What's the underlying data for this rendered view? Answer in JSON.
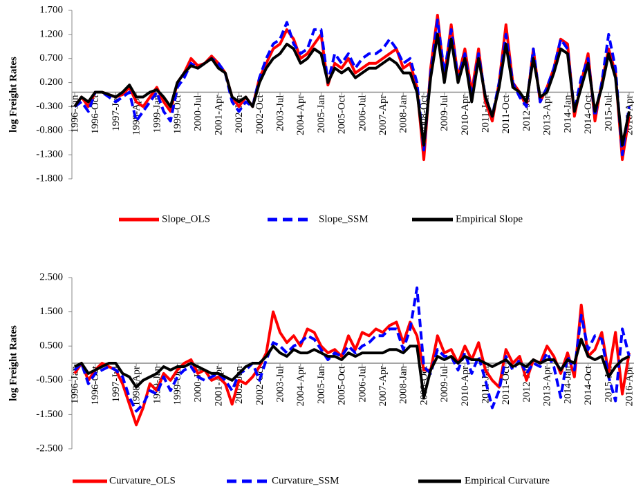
{
  "chart_data": [
    {
      "type": "line",
      "y_label": "log Freight Rates",
      "categories": [
        "1996-Jan",
        null,
        null,
        "1996-Oct",
        null,
        null,
        "1997-Jul",
        null,
        null,
        "1998-Apr",
        null,
        null,
        "1999-Jan",
        null,
        null,
        "1999-Oct",
        null,
        null,
        "2000-Jul",
        null,
        null,
        "2001-Apr",
        null,
        null,
        "2002-Jan",
        null,
        null,
        "2002-Oct",
        null,
        null,
        "2003-Jul",
        null,
        null,
        "2004-Apr",
        null,
        null,
        "2005-Jan",
        null,
        null,
        "2005-Oct",
        null,
        null,
        "2006-Jul",
        null,
        null,
        "2007-Apr",
        null,
        null,
        "2008-Jan",
        null,
        null,
        "2008-Oct",
        null,
        null,
        "2009-Jul",
        null,
        null,
        "2010-Apr",
        null,
        null,
        "2011-Jan",
        null,
        null,
        "2011-Oct",
        null,
        null,
        "2012-Jul",
        null,
        null,
        "2013-Apr",
        null,
        null,
        "2014-Jan",
        null,
        null,
        "2014-Oct",
        null,
        null,
        "2015-Jul",
        null,
        null,
        "2016-Apr"
      ],
      "ylim": [
        -1.8,
        1.7
      ],
      "yticks": [
        {
          "value": -1.8,
          "label": "-1.800"
        },
        {
          "value": -1.3,
          "label": "-1.300"
        },
        {
          "value": -0.8,
          "label": "-0.800"
        },
        {
          "value": -0.3,
          "label": "-0.300"
        },
        {
          "value": 0.2,
          "label": "0.200"
        },
        {
          "value": 0.7,
          "label": "0.700"
        },
        {
          "value": 1.2,
          "label": "1.200"
        },
        {
          "value": 1.7,
          "label": "1.700"
        }
      ],
      "series": [
        {
          "name": "Slope_OLS",
          "color": "#ff0000",
          "dashed": false,
          "values": [
            -0.3,
            -0.1,
            -0.3,
            0.0,
            0.0,
            -0.05,
            -0.1,
            -0.05,
            0.1,
            -0.2,
            -0.3,
            -0.1,
            0.1,
            -0.2,
            -0.4,
            0.2,
            0.4,
            0.7,
            0.55,
            0.6,
            0.75,
            0.6,
            0.4,
            -0.1,
            -0.3,
            -0.1,
            -0.3,
            0.3,
            0.6,
            0.9,
            1.0,
            1.3,
            1.1,
            0.7,
            0.8,
            1.0,
            1.2,
            0.15,
            0.6,
            0.5,
            0.7,
            0.4,
            0.5,
            0.6,
            0.6,
            0.7,
            0.8,
            0.9,
            0.5,
            0.6,
            0.1,
            -1.4,
            0.5,
            1.6,
            0.3,
            1.4,
            0.3,
            0.9,
            0.0,
            0.9,
            -0.2,
            -0.6,
            0.2,
            1.4,
            0.2,
            0.0,
            -0.3,
            0.9,
            -0.2,
            0.1,
            0.5,
            1.1,
            1.0,
            -0.5,
            0.2,
            0.8,
            -0.6,
            0.2,
            0.9,
            0.4,
            -1.4,
            -0.5
          ]
        },
        {
          "name": "Slope_SSM",
          "color": "#0000ff",
          "dashed": true,
          "values": [
            -0.3,
            -0.2,
            -0.4,
            0.0,
            0.0,
            -0.1,
            -0.2,
            -0.1,
            0.0,
            -0.6,
            -0.4,
            -0.2,
            0.0,
            -0.4,
            -0.6,
            0.1,
            0.3,
            0.6,
            0.5,
            0.6,
            0.7,
            0.6,
            0.4,
            -0.2,
            -0.4,
            -0.2,
            -0.3,
            0.3,
            0.7,
            1.0,
            1.1,
            1.45,
            1.0,
            0.8,
            0.9,
            1.3,
            1.3,
            0.2,
            0.8,
            0.6,
            0.8,
            0.5,
            0.7,
            0.8,
            0.8,
            0.9,
            1.1,
            0.9,
            0.6,
            0.7,
            0.2,
            -1.2,
            0.4,
            1.5,
            0.4,
            1.3,
            0.3,
            0.8,
            -0.1,
            0.8,
            -0.1,
            -0.5,
            0.2,
            1.2,
            0.2,
            -0.1,
            -0.3,
            0.9,
            -0.2,
            0.1,
            0.5,
            1.1,
            0.9,
            -0.4,
            0.3,
            0.7,
            -0.5,
            0.2,
            1.2,
            0.5,
            -1.3,
            -0.3
          ]
        },
        {
          "name": "Empirical Slope",
          "color": "#000000",
          "dashed": false,
          "values": [
            -0.3,
            -0.1,
            -0.2,
            0.0,
            0.0,
            -0.05,
            -0.1,
            0.0,
            0.15,
            -0.1,
            -0.1,
            0.0,
            0.05,
            -0.1,
            -0.3,
            0.2,
            0.4,
            0.55,
            0.5,
            0.6,
            0.7,
            0.5,
            0.4,
            -0.1,
            -0.2,
            -0.1,
            -0.3,
            0.2,
            0.5,
            0.7,
            0.8,
            1.0,
            0.9,
            0.6,
            0.7,
            0.9,
            0.8,
            0.2,
            0.5,
            0.4,
            0.5,
            0.3,
            0.4,
            0.5,
            0.5,
            0.6,
            0.7,
            0.6,
            0.4,
            0.4,
            0.0,
            -1.1,
            0.3,
            1.2,
            0.2,
            1.1,
            0.2,
            0.7,
            -0.2,
            0.7,
            -0.1,
            -0.5,
            0.1,
            1.0,
            0.1,
            0.0,
            -0.2,
            0.7,
            -0.1,
            0.0,
            0.4,
            0.9,
            0.8,
            -0.4,
            0.1,
            0.6,
            -0.4,
            0.1,
            0.8,
            0.3,
            -1.1,
            -0.4
          ]
        }
      ]
    },
    {
      "type": "line",
      "y_label": "log Freight Rates",
      "categories": [
        "1996-Jan",
        null,
        null,
        "1996-Oct",
        null,
        null,
        "1997-Jul",
        null,
        null,
        "1998-Apr",
        null,
        null,
        "1999-Jan",
        null,
        null,
        "1999-Oct",
        null,
        null,
        "2000-Jul",
        null,
        null,
        "2001-Apr",
        null,
        null,
        "2002-Jan",
        null,
        null,
        "2002-Oct",
        null,
        null,
        "2003-Jul",
        null,
        null,
        "2004-Apr",
        null,
        null,
        "2005-Jan",
        null,
        null,
        "2005-Oct",
        null,
        null,
        "2006-Jul",
        null,
        null,
        "2007-Apr",
        null,
        null,
        "2008-Jan",
        null,
        null,
        "2008-Oct",
        null,
        null,
        "2009-Jul",
        null,
        null,
        "2010-Apr",
        null,
        null,
        "2011-Jan",
        null,
        null,
        "2011-Oct",
        null,
        null,
        "2012-Jul",
        null,
        null,
        "2013-Apr",
        null,
        null,
        "2014-Jan",
        null,
        null,
        "2014-Oct",
        null,
        null,
        "2015-Jul",
        null,
        null,
        "2016-Apr"
      ],
      "ylim": [
        -2.5,
        2.5
      ],
      "yticks": [
        {
          "value": -2.5,
          "label": "-2.500"
        },
        {
          "value": -1.5,
          "label": "-1.500"
        },
        {
          "value": -0.5,
          "label": "-0.500"
        },
        {
          "value": 0.5,
          "label": "0.500"
        },
        {
          "value": 1.5,
          "label": "1.500"
        },
        {
          "value": 2.5,
          "label": "2.500"
        }
      ],
      "series": [
        {
          "name": "Curvature_OLS",
          "color": "#ff0000",
          "dashed": false,
          "values": [
            -0.3,
            0.0,
            -0.5,
            -0.2,
            0.0,
            -0.1,
            -0.2,
            -0.6,
            -1.2,
            -1.8,
            -1.3,
            -0.6,
            -0.8,
            -0.3,
            -0.5,
            -0.2,
            0.0,
            0.1,
            -0.3,
            -0.2,
            -0.5,
            -0.4,
            -0.6,
            -1.2,
            -0.5,
            -0.6,
            -0.4,
            -0.1,
            0.3,
            1.5,
            0.9,
            0.6,
            0.8,
            0.5,
            1.0,
            0.9,
            0.5,
            0.3,
            0.4,
            0.2,
            0.8,
            0.4,
            0.9,
            0.8,
            1.0,
            0.9,
            1.1,
            1.2,
            0.6,
            1.2,
            0.8,
            -0.2,
            -0.2,
            0.8,
            0.3,
            0.4,
            0.0,
            0.5,
            0.1,
            0.6,
            -0.2,
            -0.5,
            -0.7,
            0.4,
            0.0,
            0.2,
            -0.5,
            0.1,
            0.0,
            0.5,
            0.2,
            -0.3,
            0.3,
            -0.4,
            1.7,
            0.2,
            0.4,
            0.9,
            -0.3,
            0.9,
            -0.9,
            0.3
          ]
        },
        {
          "name": "Curvature_SSM",
          "color": "#0000ff",
          "dashed": true,
          "values": [
            -0.2,
            0.0,
            -0.6,
            -0.3,
            -0.2,
            -0.1,
            -0.2,
            -0.4,
            -1.0,
            -1.4,
            -1.2,
            -0.8,
            -0.9,
            -0.4,
            -0.8,
            -0.4,
            -0.2,
            -0.1,
            -0.4,
            -0.5,
            -0.4,
            -0.3,
            -0.5,
            -0.8,
            -0.3,
            -0.2,
            0.0,
            -0.5,
            0.1,
            0.6,
            0.5,
            0.3,
            0.5,
            0.6,
            0.8,
            0.7,
            0.4,
            0.1,
            0.3,
            0.2,
            0.5,
            0.3,
            0.5,
            0.6,
            0.8,
            0.8,
            1.0,
            1.0,
            0.4,
            1.0,
            2.2,
            -0.1,
            -0.3,
            0.4,
            0.2,
            0.2,
            -0.2,
            0.3,
            -0.3,
            0.2,
            -0.5,
            -1.3,
            -0.8,
            0.2,
            -0.2,
            0.1,
            -0.3,
            0.0,
            -0.1,
            0.3,
            -0.1,
            -1.0,
            0.2,
            -0.2,
            1.4,
            0.4,
            0.8,
            0.7,
            -0.4,
            -1.1,
            1.0,
            0.2
          ]
        },
        {
          "name": "Empirical Curvature",
          "color": "#000000",
          "dashed": false,
          "values": [
            -0.1,
            0.0,
            -0.3,
            -0.2,
            -0.1,
            0.0,
            0.0,
            -0.3,
            -0.4,
            -0.7,
            -0.5,
            -0.4,
            -0.3,
            -0.1,
            -0.2,
            -0.1,
            -0.1,
            0.0,
            -0.1,
            -0.2,
            -0.3,
            -0.3,
            -0.4,
            -0.5,
            -0.3,
            -0.1,
            0.0,
            0.0,
            0.2,
            0.5,
            0.3,
            0.2,
            0.4,
            0.3,
            0.3,
            0.4,
            0.3,
            0.2,
            0.2,
            0.1,
            0.3,
            0.2,
            0.3,
            0.3,
            0.3,
            0.3,
            0.4,
            0.4,
            0.3,
            0.5,
            0.5,
            -1.0,
            -0.2,
            0.2,
            0.1,
            0.2,
            0.0,
            0.2,
            0.1,
            0.1,
            0.0,
            -0.1,
            0.0,
            0.1,
            -0.1,
            0.0,
            -0.1,
            0.1,
            0.0,
            0.1,
            0.1,
            -0.2,
            0.1,
            0.0,
            0.7,
            0.2,
            0.1,
            0.2,
            -0.4,
            -0.1,
            0.1,
            0.2
          ]
        }
      ]
    }
  ]
}
